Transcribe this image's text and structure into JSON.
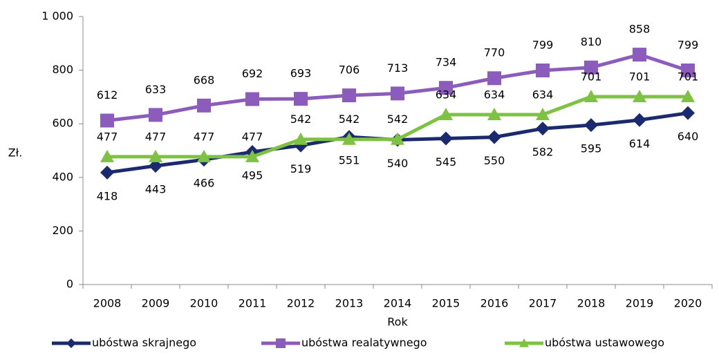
{
  "chart_data": {
    "type": "line",
    "x_label": "Rok",
    "y_label": "Zł.",
    "categories": [
      "2008",
      "2009",
      "2010",
      "2011",
      "2012",
      "2013",
      "2014",
      "2015",
      "2016",
      "2017",
      "2018",
      "2019",
      "2020"
    ],
    "series": [
      {
        "name": "ubóstwa skrajnego",
        "color": "#1b2a6e",
        "marker": "diamond",
        "label_position": "below",
        "values": [
          418,
          443,
          466,
          495,
          519,
          551,
          540,
          545,
          550,
          582,
          595,
          614,
          640
        ]
      },
      {
        "name": "ubóstwa realatywnego",
        "color": "#8b5cbb",
        "marker": "square",
        "label_position": "above",
        "values": [
          612,
          633,
          668,
          692,
          693,
          706,
          713,
          734,
          770,
          799,
          810,
          858,
          799
        ]
      },
      {
        "name": "ubóstwa ustawowego",
        "color": "#7dc242",
        "marker": "triangle",
        "label_position": "above",
        "values": [
          477,
          477,
          477,
          477,
          542,
          542,
          542,
          634,
          634,
          634,
          701,
          701,
          701
        ]
      }
    ],
    "ylim": [
      0,
      1000
    ],
    "yticks": [
      0,
      200,
      400,
      600,
      800,
      {
        "value": 1000,
        "label": "1 000"
      }
    ],
    "grid": false,
    "legend": "bottom"
  }
}
